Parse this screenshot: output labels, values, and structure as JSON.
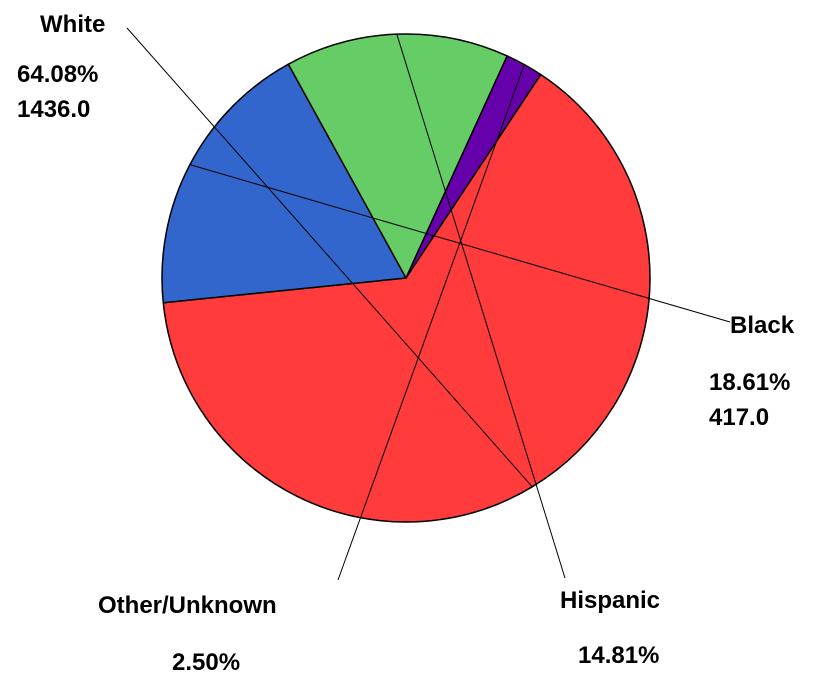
{
  "chart_data": {
    "type": "pie",
    "title": "",
    "slices": [
      {
        "name": "White",
        "percent_label": "64.08%",
        "value_label": "1436.0",
        "percent": 64.08,
        "value": 1436.0,
        "color": "#ff3b3b"
      },
      {
        "name": "Black",
        "percent_label": "18.61%",
        "value_label": "417.0",
        "percent": 18.61,
        "value": 417.0,
        "color": "#3366cc"
      },
      {
        "name": "Hispanic",
        "percent_label": "14.81%",
        "value_label": "",
        "percent": 14.81,
        "value": null,
        "color": "#66cc66"
      },
      {
        "name": "Other/Unknown",
        "percent_label": "2.50%",
        "value_label": "",
        "percent": 2.5,
        "value": null,
        "color": "#6600aa"
      }
    ]
  }
}
